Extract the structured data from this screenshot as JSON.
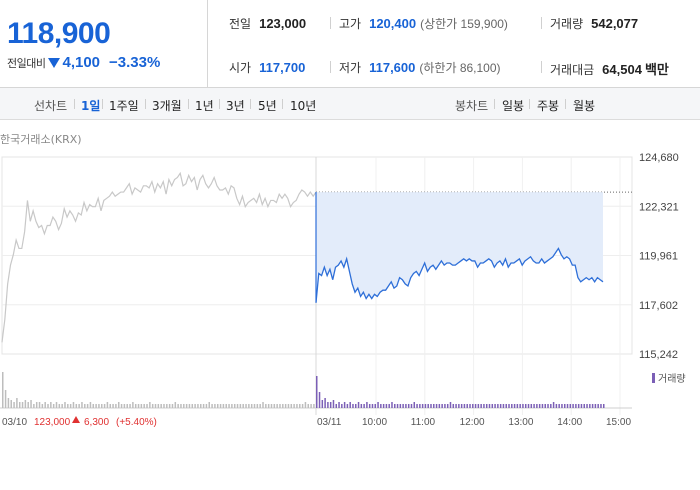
{
  "quote": {
    "price": "118,900",
    "change_label": "전일대비",
    "change": "4,100",
    "change_pct": "−3.33%",
    "stats": {
      "prev_close": {
        "label": "전일",
        "value": "123,000"
      },
      "high": {
        "label": "고가",
        "value": "120,400",
        "sub": "(상한가 159,900)"
      },
      "volume": {
        "label": "거래량",
        "value": "542,077"
      },
      "open": {
        "label": "시가",
        "value": "117,700"
      },
      "low": {
        "label": "저가",
        "value": "117,600",
        "sub": "(하한가 86,100)"
      },
      "amount": {
        "label": "거래대금",
        "value": "64,504",
        "unit": "백만"
      }
    }
  },
  "periods": {
    "label": "선차트",
    "items": [
      "1일",
      "1주일",
      "3개월",
      "1년",
      "3년",
      "5년",
      "10년"
    ],
    "active": "1일"
  },
  "candle_periods": {
    "label": "봉차트",
    "items": [
      "일봉",
      "주봉",
      "월봉"
    ]
  },
  "source": "한국거래소(KRX)",
  "colors": {
    "accent": "#1863d6",
    "up": "#e03131",
    "down": "#1863d6",
    "today_line": "#2e6fd8",
    "today_fill": "#e3ecfa",
    "prev_line": "#c8c8c8",
    "volume_prev": "#bdbdbd",
    "volume_today": "#7b5fb6"
  },
  "chart_data": {
    "type": "line",
    "y_ticks": [
      "124,680",
      "122,321",
      "119,961",
      "117,602",
      "115,242"
    ],
    "ylim": [
      115242,
      124680
    ],
    "prev_close": 123000,
    "x_ticks": [
      "03/11",
      "10:00",
      "11:00",
      "12:00",
      "13:00",
      "14:00",
      "15:00"
    ],
    "prev_day": {
      "date": "03/10",
      "close": "123,000",
      "change": "6,300",
      "change_pct": "(+5.40%)",
      "values": [
        115800,
        116900,
        118600,
        119500,
        120000,
        120700,
        120300,
        120300,
        121100,
        122600,
        121600,
        122100,
        121600,
        121300,
        121400,
        121000,
        121400,
        121400,
        121800,
        121600,
        121200,
        121500,
        122200,
        121800,
        122100,
        121900,
        121600,
        122000,
        121900,
        122500,
        122100,
        122400,
        122300,
        122300,
        122700,
        122100,
        122600,
        122700,
        122800,
        123000,
        122800,
        122900,
        123000,
        123000,
        123200,
        123400,
        122900,
        123200,
        123100,
        123000,
        123300,
        123300,
        123200,
        123500,
        123000,
        123400,
        123200,
        123500,
        122900,
        123600,
        123300,
        123600,
        123700,
        123900,
        123300,
        123400,
        123800,
        123500,
        123700,
        123100,
        123600,
        123800,
        123400,
        123200,
        123400,
        123700,
        123300,
        123100,
        123100,
        123200,
        122900,
        123300,
        123200,
        122700,
        122400,
        122800,
        122300,
        122500,
        122600,
        122700,
        122500,
        122900,
        122400,
        122700,
        122300,
        122600,
        122600,
        122500,
        122900,
        122700,
        122900,
        122700,
        122300,
        122500,
        122600,
        122900,
        123100,
        123000,
        122800,
        123000,
        122800,
        123000
      ]
    },
    "today": {
      "date": "03/11",
      "values": [
        117700,
        119100,
        119000,
        119400,
        119000,
        119300,
        118800,
        119400,
        119500,
        119700,
        119400,
        119800,
        119200,
        118600,
        118200,
        118400,
        118000,
        118200,
        117900,
        118100,
        117900,
        118100,
        118000,
        118200,
        118300,
        118300,
        118500,
        118700,
        118400,
        118500,
        118900,
        118800,
        118600,
        118500,
        118900,
        119100,
        119200,
        119000,
        119300,
        119600,
        119200,
        119400,
        119500,
        119300,
        119500,
        119700,
        119500,
        119600,
        119600,
        119500,
        119500,
        119600,
        119700,
        119800,
        119700,
        119800,
        119700,
        119700,
        119400,
        119600,
        119600,
        119700,
        119800,
        119700,
        119400,
        119600,
        119700,
        119500,
        119800,
        119400,
        119600,
        119600,
        119700,
        119800,
        119500,
        119700,
        119800,
        119900,
        119700,
        119600,
        119600,
        119800,
        119600,
        119700,
        119800,
        119900,
        120100,
        120300,
        120000,
        119800,
        119900,
        119800,
        119500,
        119500,
        118900,
        118700,
        118800,
        118900,
        118800,
        118900,
        118700,
        118900,
        118800,
        118700
      ]
    },
    "volume": {
      "legend": "거래량",
      "prev_day": [
        18,
        9,
        5,
        4,
        3,
        5,
        3,
        3,
        4,
        3,
        4,
        2,
        3,
        3,
        2,
        3,
        2,
        3,
        2,
        3,
        2,
        2,
        3,
        2,
        2,
        3,
        2,
        2,
        3,
        2,
        2,
        3,
        2,
        2,
        2,
        2,
        2,
        3,
        2,
        2,
        2,
        3,
        2,
        2,
        2,
        2,
        3,
        2,
        2,
        2,
        2,
        2,
        3,
        2,
        2,
        2,
        2,
        2,
        2,
        2,
        2,
        3,
        2,
        2,
        2,
        2,
        2,
        2,
        2,
        2,
        2,
        2,
        2,
        3,
        2,
        2,
        2,
        2,
        2,
        2,
        2,
        2,
        2,
        2,
        2,
        2,
        2,
        2,
        2,
        2,
        2,
        2,
        3,
        2,
        2,
        2,
        2,
        2,
        2,
        2,
        2,
        2,
        2,
        2,
        2,
        2,
        2,
        3,
        2,
        2,
        2,
        2
      ],
      "today": [
        16,
        8,
        4,
        5,
        3,
        3,
        4,
        2,
        3,
        2,
        3,
        2,
        3,
        2,
        2,
        3,
        2,
        2,
        3,
        2,
        2,
        2,
        3,
        2,
        2,
        2,
        2,
        3,
        2,
        2,
        2,
        2,
        2,
        2,
        2,
        3,
        2,
        2,
        2,
        2,
        2,
        2,
        2,
        2,
        2,
        2,
        2,
        2,
        3,
        2,
        2,
        2,
        2,
        2,
        2,
        2,
        2,
        2,
        2,
        2,
        2,
        2,
        2,
        2,
        2,
        2,
        2,
        2,
        2,
        2,
        2,
        2,
        2,
        2,
        2,
        2,
        2,
        2,
        2,
        2,
        2,
        2,
        2,
        2,
        2,
        3,
        2,
        2,
        2,
        2,
        2,
        2,
        2,
        2,
        2,
        2,
        2,
        2,
        2,
        2,
        2,
        2,
        2,
        2
      ]
    }
  }
}
